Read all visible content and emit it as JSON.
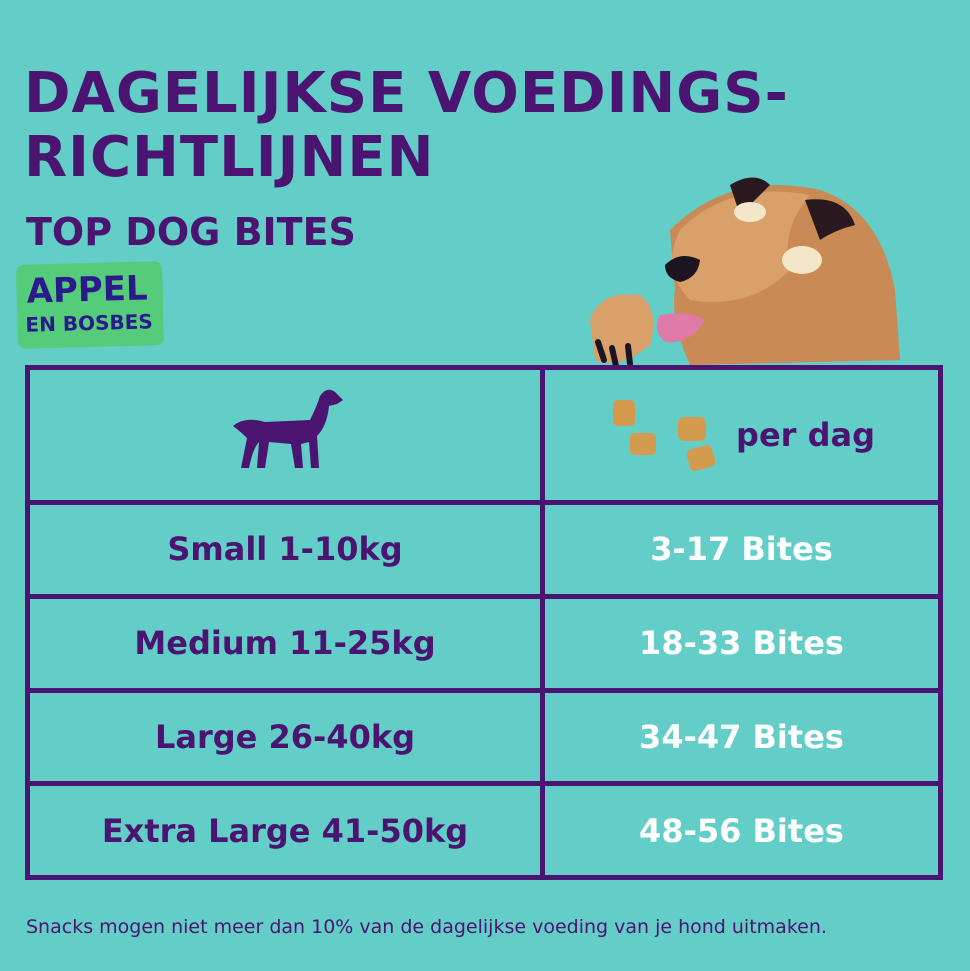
{
  "header": {
    "title_line1": "DAGELIJKSE VOEDINGS-",
    "title_line2": "RICHTLIJNEN",
    "subtitle": "TOP DOG BITES"
  },
  "badge": {
    "line1": "APPEL",
    "line2": "EN BOSBES"
  },
  "table": {
    "header_icon_left": "dog-silhouette-icon",
    "header_icon_right": "bites-icon",
    "header_right_label": "per dag",
    "rows": [
      {
        "size": "Small 1-10kg",
        "amount": "3-17 Bites"
      },
      {
        "size": "Medium 11-25kg",
        "amount": "18-33 Bites"
      },
      {
        "size": "Large 26-40kg",
        "amount": "34-47 Bites"
      },
      {
        "size": "Extra Large 41-50kg",
        "amount": "48-56 Bites"
      }
    ]
  },
  "footer": "Snacks mogen niet meer dan 10% van de dagelijkse voeding van je hond uitmaken.",
  "colors": {
    "background": "#63cdc8",
    "purple": "#4a1470",
    "badge_green": "#55cc7a",
    "value_text": "#ffffff"
  }
}
